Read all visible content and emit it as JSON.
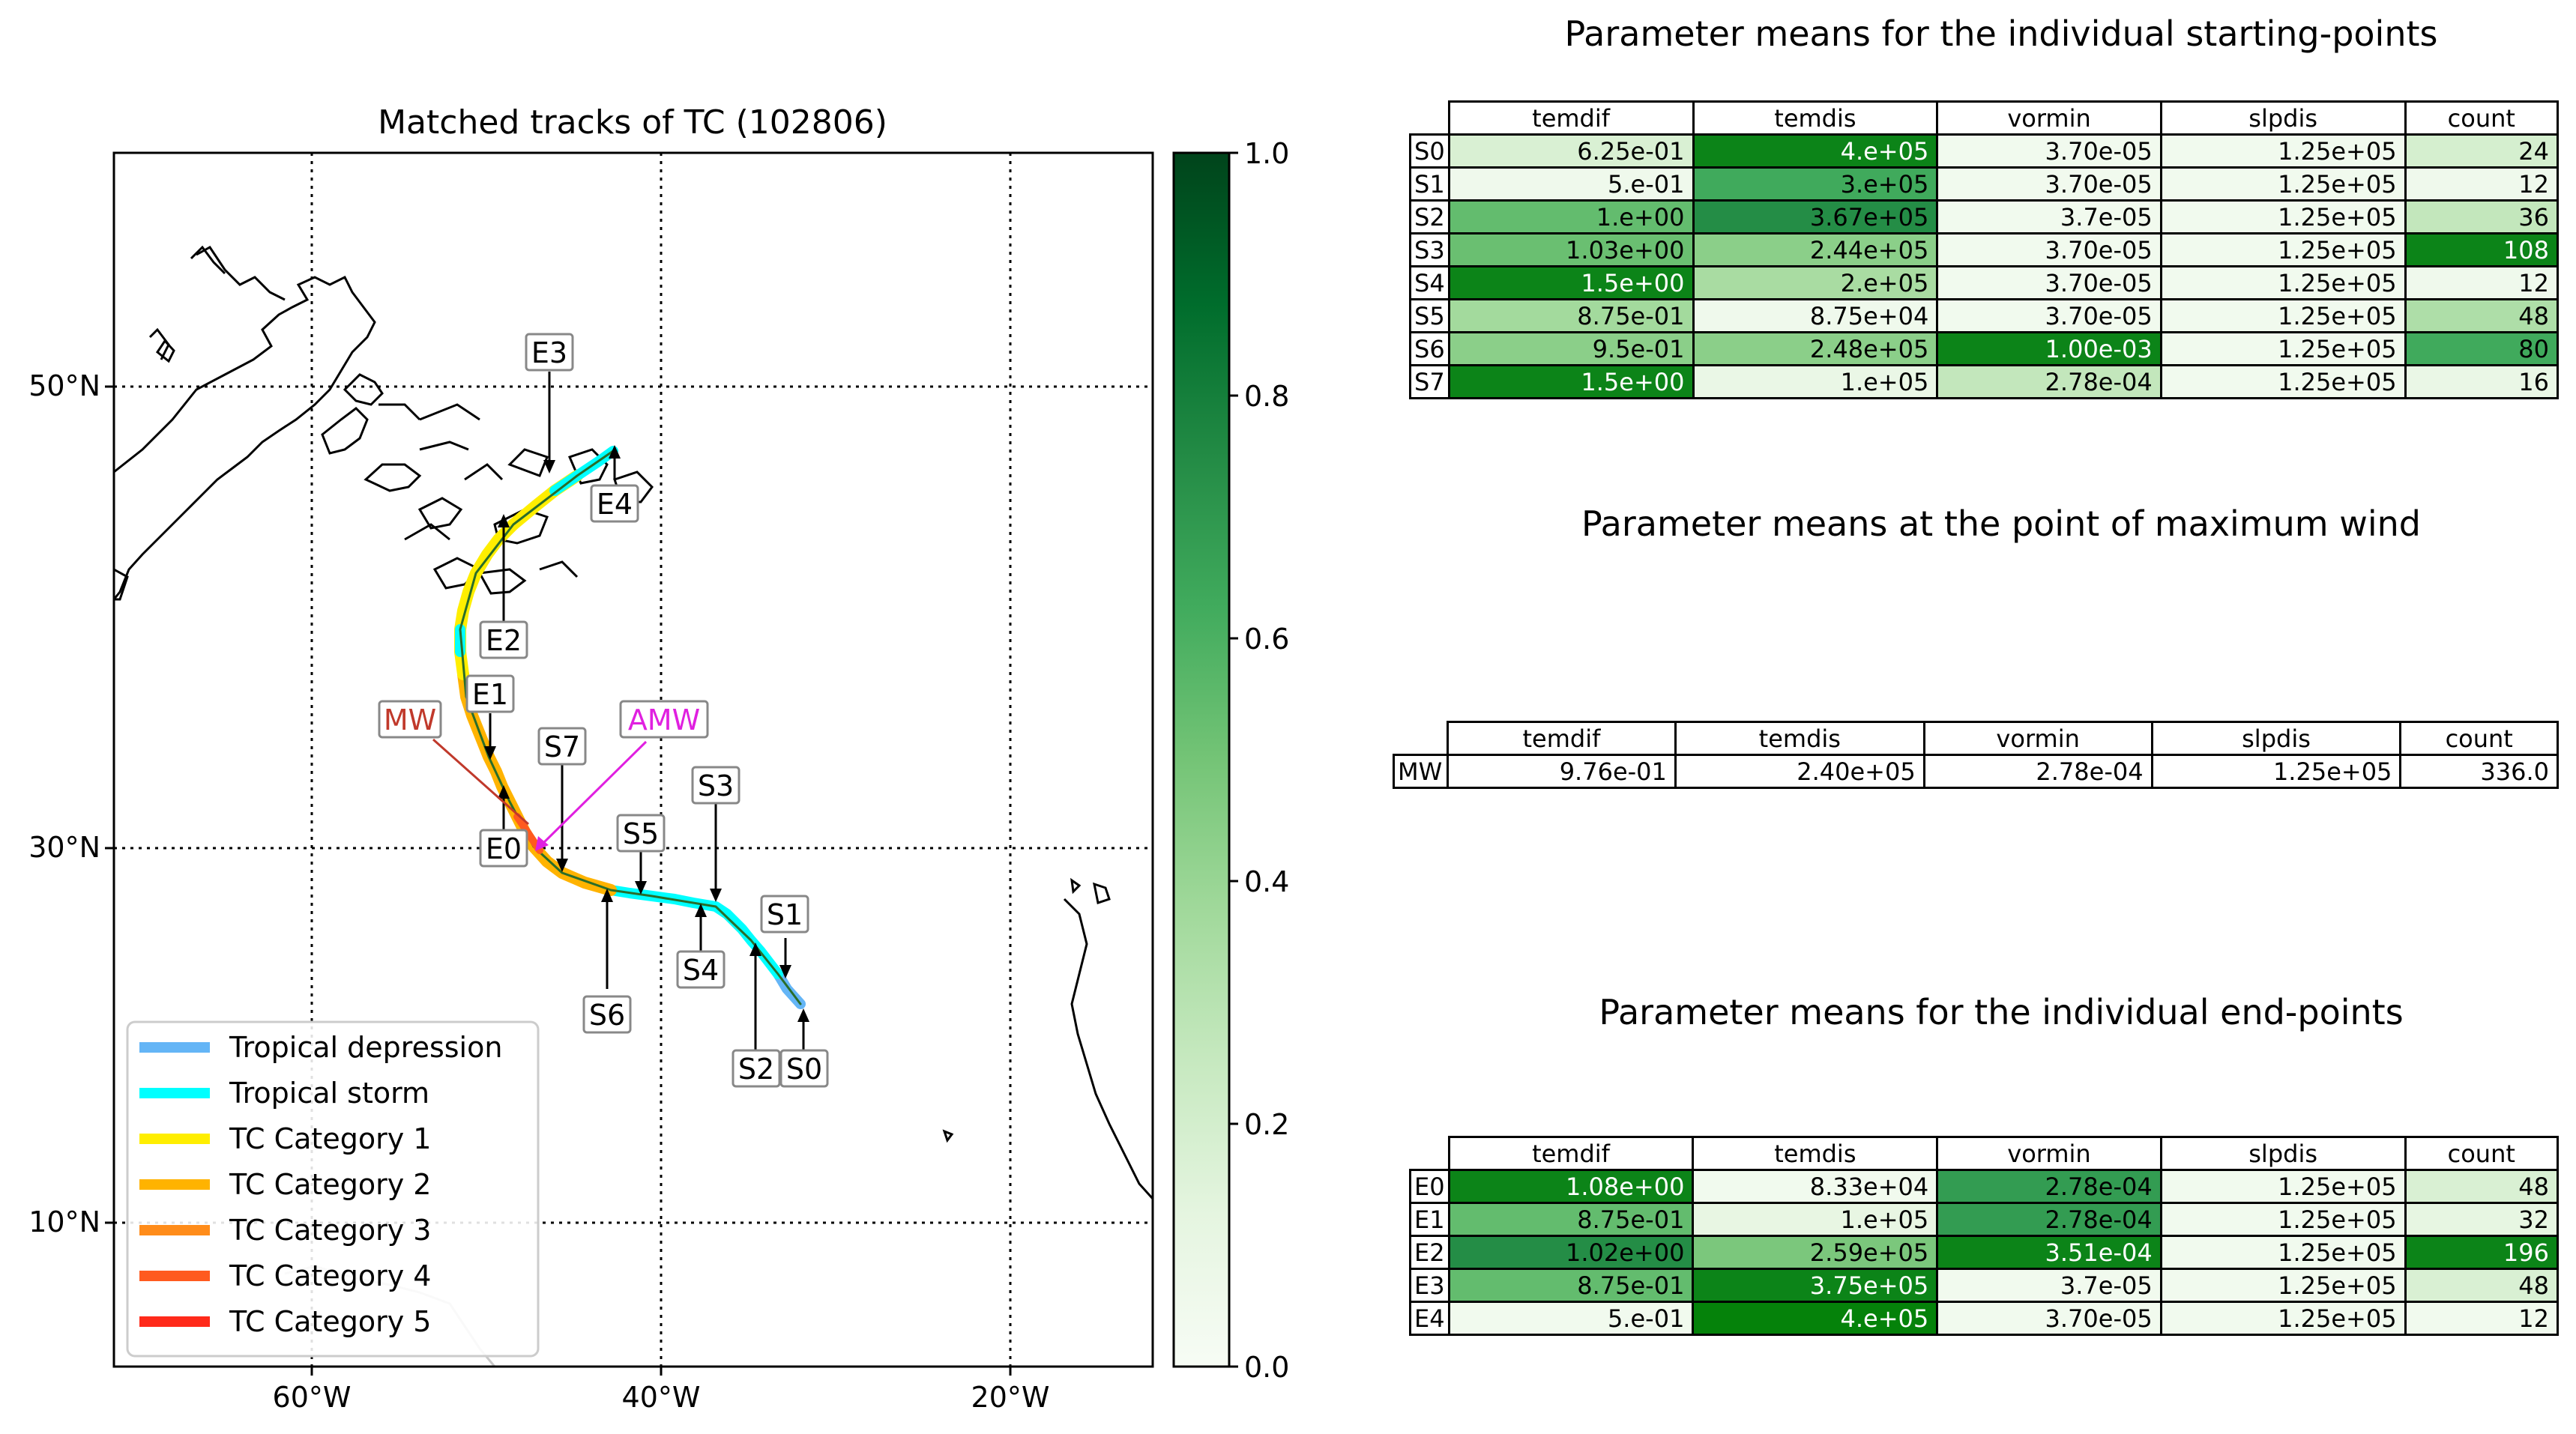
{
  "map": {
    "title": "Matched tracks of TC (102806)",
    "x_ticks": [
      "60°W",
      "40°W",
      "20°W"
    ],
    "y_ticks": [
      "50°N",
      "30°N",
      "10°N"
    ],
    "labels": {
      "starts": [
        "S0",
        "S1",
        "S2",
        "S3",
        "S4",
        "S5",
        "S6",
        "S7"
      ],
      "ends": [
        "E0",
        "E1",
        "E2",
        "E3",
        "E4"
      ],
      "mw": "MW",
      "amw": "AMW"
    },
    "legend": [
      {
        "label": "Tropical depression",
        "color": "#64b5f6"
      },
      {
        "label": "Tropical storm",
        "color": "#00ffff"
      },
      {
        "label": "TC Category 1",
        "color": "#ffee00"
      },
      {
        "label": "TC Category 2",
        "color": "#ffb300"
      },
      {
        "label": "TC Category 3",
        "color": "#ff8c1a"
      },
      {
        "label": "TC Category 4",
        "color": "#ff5a1f"
      },
      {
        "label": "TC Category 5",
        "color": "#ff2a1a"
      }
    ],
    "label_colors": {
      "mw": "#c0392b",
      "amw": "#e020e0"
    }
  },
  "colorbar": {
    "ticks": [
      "0.0",
      "0.2",
      "0.4",
      "0.6",
      "0.8",
      "1.0"
    ],
    "colormap": "Greens"
  },
  "chart_data": [
    {
      "type": "table",
      "title": "Parameter means for the individual starting-points",
      "columns": [
        "temdif",
        "temdis",
        "vormin",
        "slpdis",
        "count"
      ],
      "rows": [
        {
          "label": "S0",
          "cells": [
            "6.25e-01",
            "4.e+05",
            "3.70e-05",
            "1.25e+05",
            "24"
          ],
          "shade": [
            0.2,
            0.95,
            0.05,
            0.05,
            0.22
          ]
        },
        {
          "label": "S1",
          "cells": [
            "5.e-01",
            "3.e+05",
            "3.70e-05",
            "1.25e+05",
            "12"
          ],
          "shade": [
            0.06,
            0.72,
            0.05,
            0.05,
            0.06
          ]
        },
        {
          "label": "S2",
          "cells": [
            "1.e+00",
            "3.67e+05",
            "3.7e-05",
            "1.25e+05",
            "36"
          ],
          "shade": [
            0.62,
            0.85,
            0.05,
            0.05,
            0.3
          ]
        },
        {
          "label": "S3",
          "cells": [
            "1.03e+00",
            "2.44e+05",
            "3.70e-05",
            "1.25e+05",
            "108"
          ],
          "shade": [
            0.6,
            0.5,
            0.05,
            0.05,
            0.95
          ]
        },
        {
          "label": "S4",
          "cells": [
            "1.5e+00",
            "2.e+05",
            "3.70e-05",
            "1.25e+05",
            "12"
          ],
          "shade": [
            0.95,
            0.4,
            0.05,
            0.05,
            0.06
          ]
        },
        {
          "label": "S5",
          "cells": [
            "8.75e-01",
            "8.75e+04",
            "3.70e-05",
            "1.25e+05",
            "48"
          ],
          "shade": [
            0.42,
            0.06,
            0.05,
            0.05,
            0.38
          ]
        },
        {
          "label": "S6",
          "cells": [
            "9.5e-01",
            "2.48e+05",
            "1.00e-03",
            "1.25e+05",
            "80"
          ],
          "shade": [
            0.5,
            0.5,
            0.95,
            0.05,
            0.72
          ]
        },
        {
          "label": "S7",
          "cells": [
            "1.5e+00",
            "1.e+05",
            "2.78e-04",
            "1.25e+05",
            "16"
          ],
          "shade": [
            0.95,
            0.1,
            0.3,
            0.05,
            0.1
          ]
        }
      ]
    },
    {
      "type": "table",
      "title": "Parameter means at the point of maximum wind",
      "columns": [
        "temdif",
        "temdis",
        "vormin",
        "slpdis",
        "count"
      ],
      "rows": [
        {
          "label": "MW",
          "cells": [
            "9.76e-01",
            "2.40e+05",
            "2.78e-04",
            "1.25e+05",
            "336.0"
          ]
        }
      ]
    },
    {
      "type": "table",
      "title": "Parameter means for the individual end-points",
      "columns": [
        "temdif",
        "temdis",
        "vormin",
        "slpdis",
        "count"
      ],
      "rows": [
        {
          "label": "E0",
          "cells": [
            "1.08e+00",
            "8.33e+04",
            "2.78e-04",
            "1.25e+05",
            "48"
          ],
          "shade": [
            0.95,
            0.05,
            0.78,
            0.05,
            0.2
          ]
        },
        {
          "label": "E1",
          "cells": [
            "8.75e-01",
            "1.e+05",
            "2.78e-04",
            "1.25e+05",
            "32"
          ],
          "shade": [
            0.62,
            0.12,
            0.78,
            0.05,
            0.13
          ]
        },
        {
          "label": "E2",
          "cells": [
            "1.02e+00",
            "2.59e+05",
            "3.51e-04",
            "1.25e+05",
            "196"
          ],
          "shade": [
            0.85,
            0.55,
            0.95,
            0.05,
            0.95
          ]
        },
        {
          "label": "E3",
          "cells": [
            "8.75e-01",
            "3.75e+05",
            "3.7e-05",
            "1.25e+05",
            "48"
          ],
          "shade": [
            0.62,
            0.95,
            0.05,
            0.05,
            0.2
          ]
        },
        {
          "label": "E4",
          "cells": [
            "5.e-01",
            "4.e+05",
            "3.70e-05",
            "1.25e+05",
            "12"
          ],
          "shade": [
            0.05,
            0.98,
            0.05,
            0.05,
            0.05
          ]
        }
      ]
    }
  ]
}
